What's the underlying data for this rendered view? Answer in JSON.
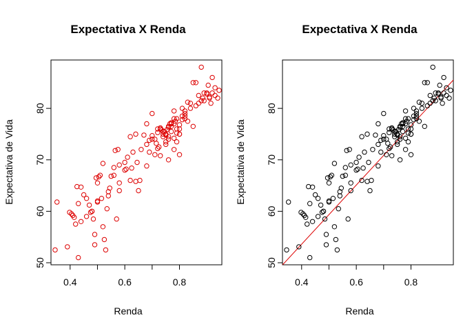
{
  "chart_data": [
    {
      "type": "scatter",
      "title": "Expectativa X Renda",
      "xlabel": "Renda",
      "ylabel": "Expectativa de Vida",
      "xlim": [
        0.33,
        0.955
      ],
      "ylim": [
        49.6,
        89.4
      ],
      "xticks": [
        0.4,
        0.6,
        0.8
      ],
      "yticks": [
        50,
        60,
        70,
        80
      ],
      "grid": false,
      "point_color": "#dd0000",
      "regression_line": null,
      "series": [
        {
          "x": [
            0.345,
            0.352,
            0.39,
            0.398,
            0.405,
            0.41,
            0.415,
            0.42,
            0.425,
            0.43,
            0.43,
            0.44,
            0.45,
            0.46,
            0.47,
            0.475,
            0.48,
            0.485,
            0.49,
            0.49,
            0.495,
            0.5,
            0.5,
            0.505,
            0.51,
            0.515,
            0.52,
            0.52,
            0.525,
            0.53,
            0.535,
            0.54,
            0.545,
            0.55,
            0.56,
            0.565,
            0.57,
            0.575,
            0.58,
            0.58,
            0.6,
            0.605,
            0.61,
            0.62,
            0.625,
            0.63,
            0.64,
            0.645,
            0.65,
            0.655,
            0.66,
            0.67,
            0.68,
            0.68,
            0.69,
            0.7,
            0.7,
            0.71,
            0.715,
            0.72,
            0.725,
            0.73,
            0.74,
            0.745,
            0.75,
            0.755,
            0.76,
            0.765,
            0.77,
            0.78,
            0.785,
            0.79,
            0.8,
            0.82,
            0.83,
            0.84,
            0.85,
            0.86,
            0.87,
            0.88,
            0.885,
            0.89,
            0.9,
            0.905,
            0.91,
            0.915,
            0.92,
            0.93,
            0.94,
            0.945,
            0.73,
            0.75,
            0.76,
            0.77,
            0.78,
            0.79,
            0.8,
            0.81,
            0.82,
            0.71,
            0.72,
            0.74,
            0.75,
            0.76,
            0.77,
            0.78,
            0.79,
            0.8,
            0.74,
            0.75,
            0.76,
            0.77,
            0.78,
            0.79,
            0.8,
            0.81,
            0.82,
            0.68,
            0.69,
            0.7,
            0.72,
            0.73,
            0.735,
            0.88,
            0.9,
            0.91,
            0.89,
            0.92,
            0.93,
            0.87,
            0.86,
            0.85,
            0.84,
            0.83,
            0.82,
            0.81,
            0.76,
            0.78,
            0.8,
            0.64,
            0.62,
            0.6,
            0.58,
            0.56,
            0.54,
            0.5,
            0.48,
            0.46,
            0.44
          ],
          "y": [
            52.5,
            61.8,
            53.1,
            59.8,
            59.5,
            59.2,
            58.8,
            57.5,
            64.8,
            61.5,
            51,
            64.7,
            63.2,
            62.5,
            61.2,
            59.8,
            60,
            58.5,
            55.5,
            53.5,
            66.5,
            61.8,
            65.5,
            66.7,
            67,
            62.5,
            57,
            69.3,
            54.5,
            52.5,
            60.5,
            63.8,
            64.5,
            66.8,
            68.5,
            71.8,
            58.5,
            72,
            64,
            65.5,
            69.5,
            68.2,
            70.5,
            74.5,
            68.4,
            71.5,
            75,
            69.5,
            64,
            66,
            72,
            74.8,
            68.8,
            77,
            71.5,
            74.7,
            79,
            71,
            73.2,
            75.3,
            72.5,
            70.8,
            74.5,
            75.5,
            73.5,
            75.9,
            76.5,
            77,
            75.5,
            79.5,
            77.5,
            73.5,
            76,
            78,
            77.5,
            81,
            76.5,
            85,
            82.5,
            81.5,
            82,
            83,
            82.8,
            84.5,
            82.2,
            81,
            86,
            84,
            82,
            83.5,
            76,
            75,
            74,
            76.5,
            77,
            78,
            75,
            78.5,
            79,
            74,
            76,
            75,
            73,
            74.5,
            77,
            78,
            76,
            75,
            75.5,
            74.8,
            76.3,
            77.2,
            74.2,
            75.2,
            76.8,
            77.8,
            78.5,
            73,
            73.8,
            74,
            72.2,
            76.2,
            75.8,
            88,
            83,
            82,
            81.5,
            83,
            82.5,
            81,
            80.5,
            85,
            80,
            81.2,
            79.5,
            80,
            70,
            72,
            71,
            65.8,
            66,
            68,
            69,
            67,
            63,
            62,
            60,
            59,
            58
          ]
        }
      ]
    },
    {
      "type": "scatter",
      "title": "Expectativa X Renda",
      "xlabel": "Renda",
      "ylabel": "Expectativa de Vida",
      "xlim": [
        0.33,
        0.955
      ],
      "ylim": [
        49.6,
        89.4
      ],
      "xticks": [
        0.4,
        0.6,
        0.8
      ],
      "yticks": [
        50,
        60,
        70,
        80
      ],
      "grid": false,
      "point_color": "#000000",
      "regression_line": {
        "intercept": 30.6,
        "slope": 57.5,
        "color": "#dd0000"
      },
      "series": [
        {
          "x": [
            0.345,
            0.352,
            0.39,
            0.398,
            0.405,
            0.41,
            0.415,
            0.42,
            0.425,
            0.43,
            0.43,
            0.44,
            0.45,
            0.46,
            0.47,
            0.475,
            0.48,
            0.485,
            0.49,
            0.49,
            0.495,
            0.5,
            0.5,
            0.505,
            0.51,
            0.515,
            0.52,
            0.52,
            0.525,
            0.53,
            0.535,
            0.54,
            0.545,
            0.55,
            0.56,
            0.565,
            0.57,
            0.575,
            0.58,
            0.58,
            0.6,
            0.605,
            0.61,
            0.62,
            0.625,
            0.63,
            0.64,
            0.645,
            0.65,
            0.655,
            0.66,
            0.67,
            0.68,
            0.68,
            0.69,
            0.7,
            0.7,
            0.71,
            0.715,
            0.72,
            0.725,
            0.73,
            0.74,
            0.745,
            0.75,
            0.755,
            0.76,
            0.765,
            0.77,
            0.78,
            0.785,
            0.79,
            0.8,
            0.82,
            0.83,
            0.84,
            0.85,
            0.86,
            0.87,
            0.88,
            0.885,
            0.89,
            0.9,
            0.905,
            0.91,
            0.915,
            0.92,
            0.93,
            0.94,
            0.945,
            0.73,
            0.75,
            0.76,
            0.77,
            0.78,
            0.79,
            0.8,
            0.81,
            0.82,
            0.71,
            0.72,
            0.74,
            0.75,
            0.76,
            0.77,
            0.78,
            0.79,
            0.8,
            0.74,
            0.75,
            0.76,
            0.77,
            0.78,
            0.79,
            0.8,
            0.81,
            0.82,
            0.68,
            0.69,
            0.7,
            0.72,
            0.73,
            0.735,
            0.88,
            0.9,
            0.91,
            0.89,
            0.92,
            0.93,
            0.87,
            0.86,
            0.85,
            0.84,
            0.83,
            0.82,
            0.81,
            0.76,
            0.78,
            0.8,
            0.64,
            0.62,
            0.6,
            0.58,
            0.56,
            0.54,
            0.5,
            0.48,
            0.46,
            0.44
          ],
          "y": [
            52.5,
            61.8,
            53.1,
            59.8,
            59.5,
            59.2,
            58.8,
            57.5,
            64.8,
            61.5,
            51,
            64.7,
            63.2,
            62.5,
            61.2,
            59.8,
            60,
            58.5,
            55.5,
            53.5,
            66.5,
            61.8,
            65.5,
            66.7,
            67,
            62.5,
            57,
            69.3,
            54.5,
            52.5,
            60.5,
            63.8,
            64.5,
            66.8,
            68.5,
            71.8,
            58.5,
            72,
            64,
            65.5,
            69.5,
            68.2,
            70.5,
            74.5,
            68.4,
            71.5,
            75,
            69.5,
            64,
            66,
            72,
            74.8,
            68.8,
            77,
            71.5,
            74.7,
            79,
            71,
            73.2,
            75.3,
            72.5,
            70.8,
            74.5,
            75.5,
            73.5,
            75.9,
            76.5,
            77,
            75.5,
            79.5,
            77.5,
            73.5,
            76,
            78,
            77.5,
            81,
            76.5,
            85,
            82.5,
            81.5,
            82,
            83,
            82.8,
            84.5,
            82.2,
            81,
            86,
            84,
            82,
            83.5,
            76,
            75,
            74,
            76.5,
            77,
            78,
            75,
            78.5,
            79,
            74,
            76,
            75,
            73,
            74.5,
            77,
            78,
            76,
            75,
            75.5,
            74.8,
            76.3,
            77.2,
            74.2,
            75.2,
            76.8,
            77.8,
            78.5,
            73,
            73.8,
            74,
            72.2,
            76.2,
            75.8,
            88,
            83,
            82,
            81.5,
            83,
            82.5,
            81,
            80.5,
            85,
            80,
            81.2,
            79.5,
            80,
            70,
            72,
            71,
            65.8,
            66,
            68,
            69,
            67,
            63,
            62,
            60,
            59,
            58
          ]
        }
      ]
    }
  ]
}
